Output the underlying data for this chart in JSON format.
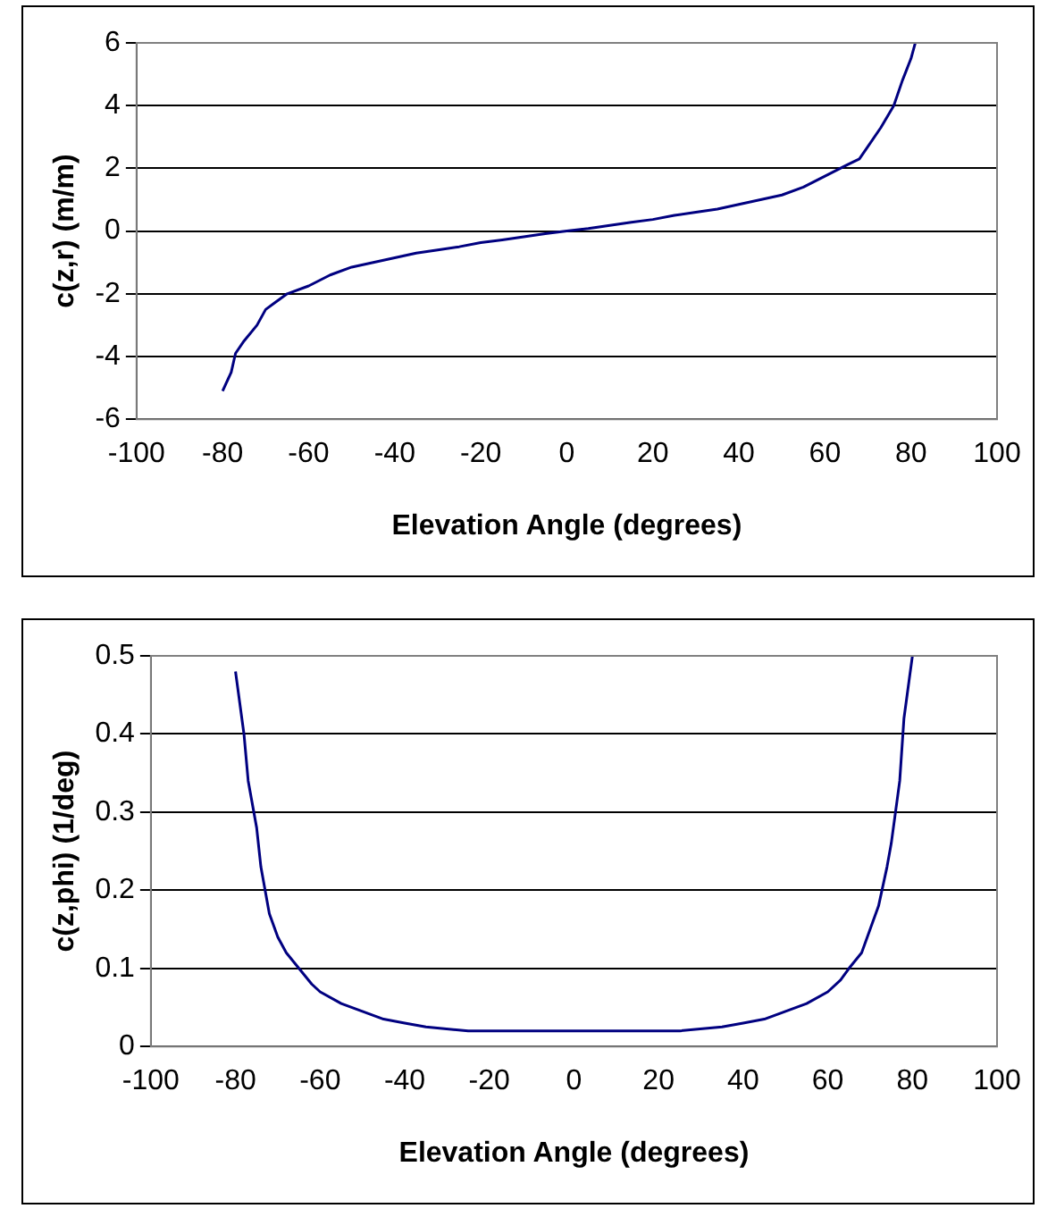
{
  "chart_data": [
    {
      "type": "line",
      "xlabel": "Elevation Angle (degrees)",
      "ylabel": "c(z,r) (m/m)",
      "grid": "y",
      "legend": false,
      "marker": "none",
      "line_style": "solid",
      "xlim": [
        -100,
        100
      ],
      "xticks": [
        -100,
        -80,
        -60,
        -40,
        -20,
        0,
        20,
        40,
        60,
        80,
        100
      ],
      "ylim": [
        -6,
        6
      ],
      "yticks": [
        -6,
        -4,
        -2,
        0,
        2,
        4,
        6
      ],
      "series": [
        {
          "color": "#000080",
          "x": [
            -80,
            -78,
            -77,
            -75,
            -72,
            -70,
            -68,
            -65,
            -60,
            -55,
            -50,
            -45,
            -40,
            -35,
            -30,
            -25,
            -20,
            -15,
            -10,
            -5,
            0,
            5,
            10,
            15,
            20,
            25,
            30,
            35,
            40,
            45,
            50,
            55,
            60,
            65,
            68,
            70,
            73,
            76,
            78,
            80,
            81
          ],
          "values": [
            -5.1,
            -4.5,
            -3.9,
            -3.5,
            -3.0,
            -2.5,
            -2.3,
            -2.0,
            -1.75,
            -1.4,
            -1.15,
            -1.0,
            -0.85,
            -0.7,
            -0.6,
            -0.5,
            -0.37,
            -0.28,
            -0.18,
            -0.08,
            0,
            0.08,
            0.18,
            0.28,
            0.37,
            0.5,
            0.6,
            0.7,
            0.85,
            1.0,
            1.15,
            1.4,
            1.75,
            2.1,
            2.3,
            2.7,
            3.3,
            4.0,
            4.8,
            5.5,
            6.0
          ]
        }
      ]
    },
    {
      "type": "line",
      "xlabel": "Elevation Angle (degrees)",
      "ylabel": "c(z,phi) (1/deg)",
      "grid": "y",
      "legend": false,
      "marker": "none",
      "line_style": "solid",
      "xlim": [
        -100,
        100
      ],
      "xticks": [
        -100,
        -80,
        -60,
        -40,
        -20,
        0,
        20,
        40,
        60,
        80,
        100
      ],
      "ylim": [
        0,
        0.5
      ],
      "yticks": [
        0,
        0.1,
        0.2,
        0.3,
        0.4,
        0.5
      ],
      "series": [
        {
          "color": "#000080",
          "x": [
            -80,
            -78,
            -77,
            -75,
            -74,
            -72,
            -70,
            -68,
            -65,
            -62,
            -60,
            -55,
            -50,
            -45,
            -40,
            -35,
            -25,
            0,
            25,
            35,
            40,
            45,
            50,
            55,
            60,
            63,
            65,
            68,
            70,
            72,
            74,
            75,
            76,
            77,
            78,
            80
          ],
          "values": [
            0.48,
            0.4,
            0.34,
            0.28,
            0.23,
            0.17,
            0.14,
            0.12,
            0.1,
            0.08,
            0.07,
            0.055,
            0.045,
            0.035,
            0.03,
            0.025,
            0.02,
            0.02,
            0.02,
            0.025,
            0.03,
            0.035,
            0.045,
            0.055,
            0.07,
            0.085,
            0.1,
            0.12,
            0.15,
            0.18,
            0.23,
            0.26,
            0.3,
            0.34,
            0.42,
            0.5
          ]
        }
      ]
    }
  ]
}
